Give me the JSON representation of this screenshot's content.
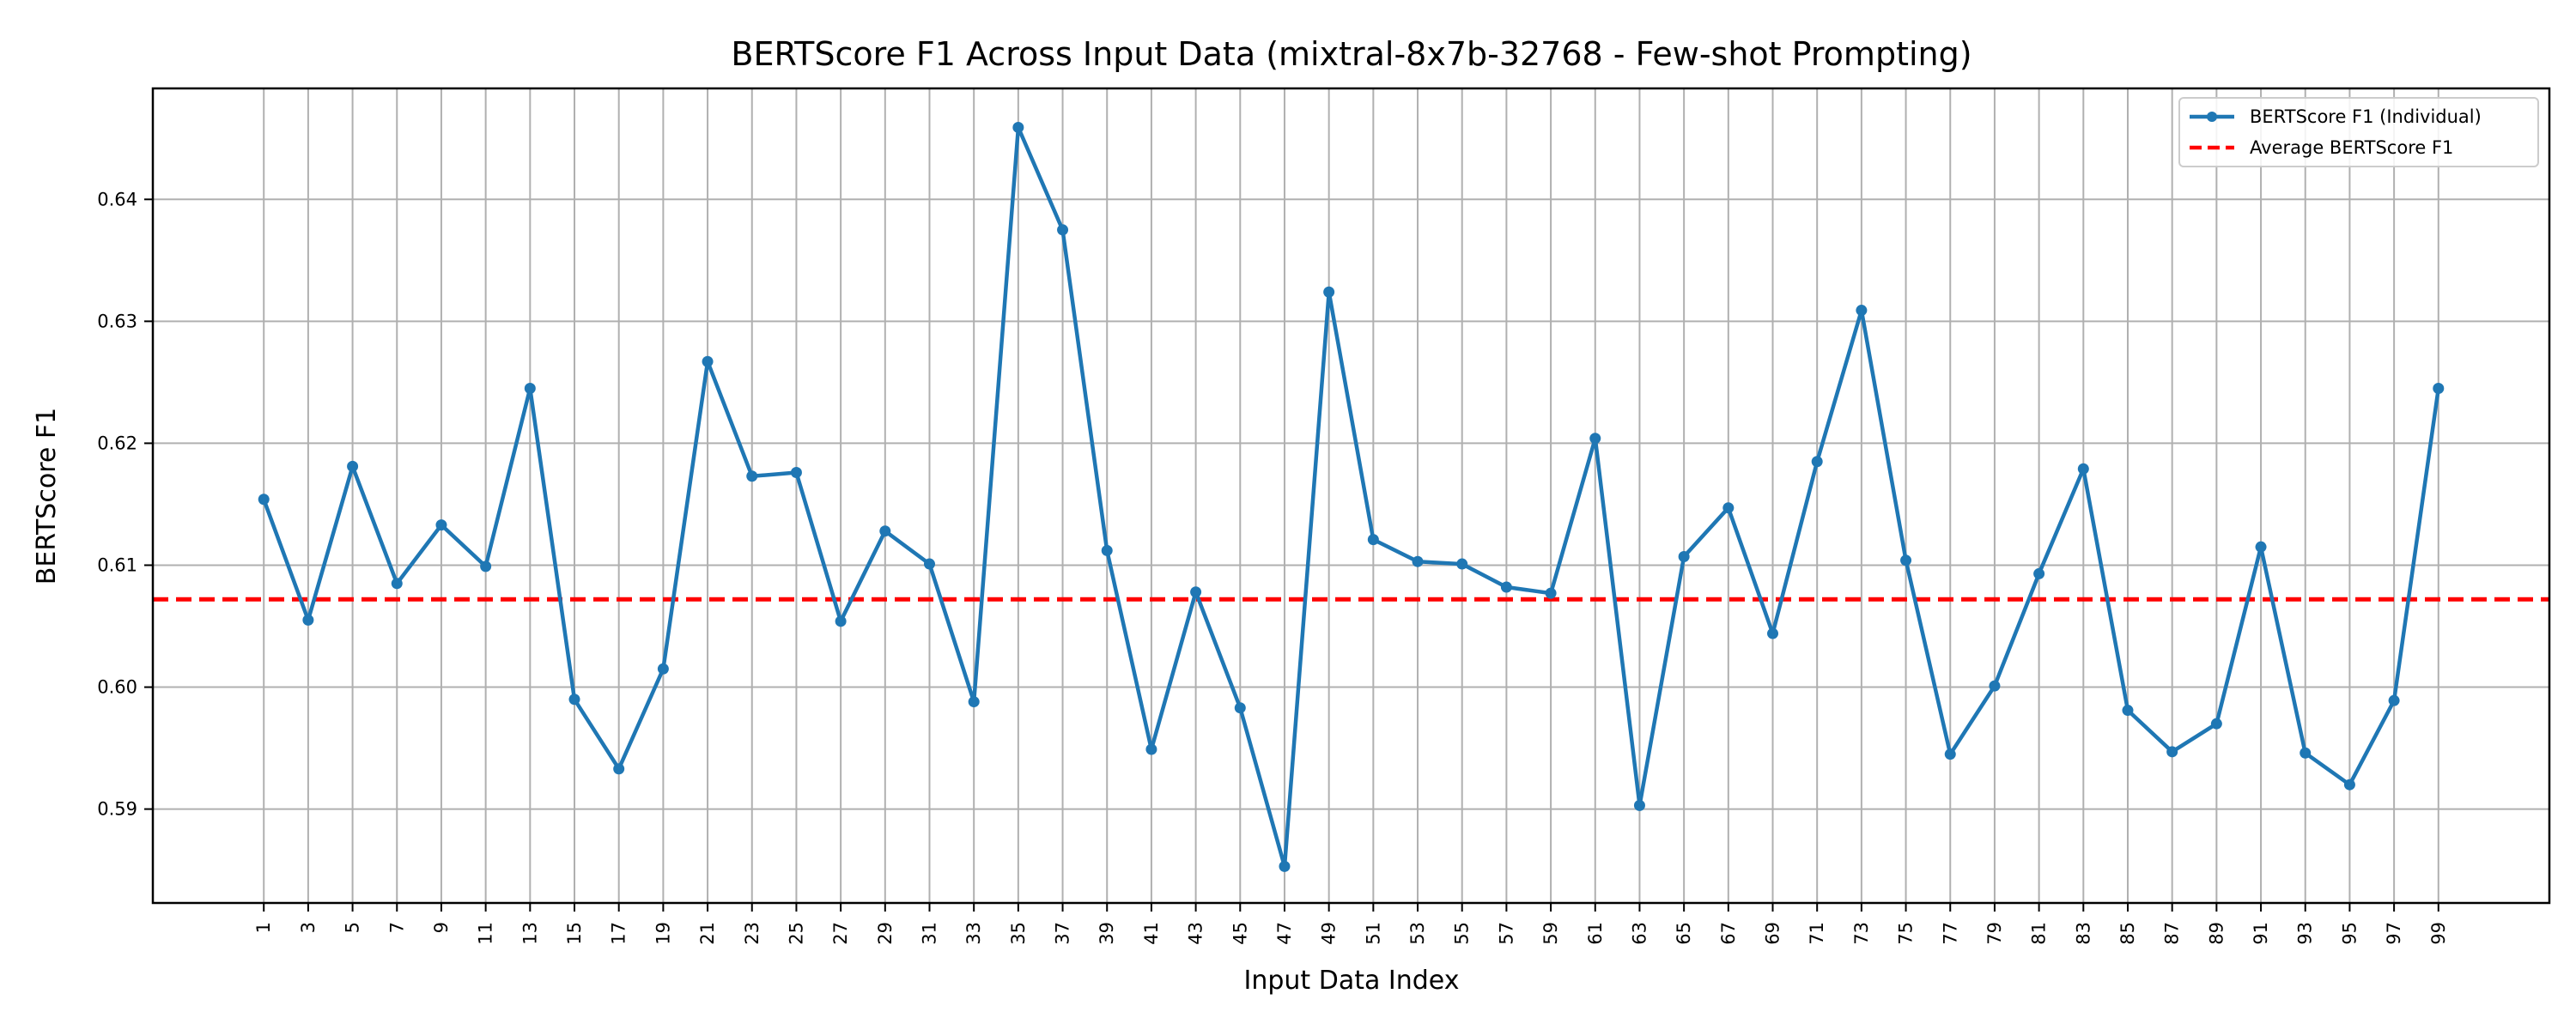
{
  "chart_data": {
    "type": "line",
    "title": "BERTScore F1 Across Input Data (mixtral-8x7b-32768 - Few-shot Prompting)",
    "xlabel": "Input Data Index",
    "ylabel": "BERTScore F1",
    "x": [
      1,
      3,
      5,
      7,
      9,
      11,
      13,
      15,
      17,
      19,
      21,
      23,
      25,
      27,
      29,
      31,
      33,
      35,
      37,
      39,
      41,
      43,
      45,
      47,
      49,
      51,
      53,
      55,
      57,
      59,
      61,
      63,
      65,
      67,
      69,
      71,
      73,
      75,
      77,
      79,
      81,
      83,
      85,
      87,
      89,
      91,
      93,
      95,
      97,
      99
    ],
    "xlim": [
      -4,
      104
    ],
    "ylim": [
      0.5823,
      0.6491
    ],
    "yticks": [
      0.59,
      0.6,
      0.61,
      0.62,
      0.63,
      0.64
    ],
    "ytick_labels": [
      "0.59",
      "0.60",
      "0.61",
      "0.62",
      "0.63",
      "0.64"
    ],
    "grid": true,
    "legend_position": "top-right",
    "series": [
      {
        "name": "BERTScore F1 (Individual)",
        "style": "line-marker",
        "color": "#1f77b4",
        "values": [
          0.6154,
          0.6055,
          0.6181,
          0.6085,
          0.6133,
          0.6099,
          0.6245,
          0.599,
          0.5933,
          0.6015,
          0.6267,
          0.6173,
          0.6176,
          0.6054,
          0.6128,
          0.6101,
          0.5988,
          0.6459,
          0.6375,
          0.6112,
          0.5949,
          0.6078,
          0.5983,
          0.5853,
          0.6324,
          0.6121,
          0.6103,
          0.6101,
          0.6082,
          0.6077,
          0.6204,
          0.5903,
          0.6107,
          0.6147,
          0.6044,
          0.6185,
          0.6309,
          0.6104,
          0.5945,
          0.6001,
          0.6093,
          0.6179,
          0.5981,
          0.5947,
          0.597,
          0.6115,
          0.5946,
          0.592,
          0.5989,
          0.6245
        ]
      },
      {
        "name": "Average BERTScore F1",
        "style": "dashed",
        "color": "#ff0000",
        "value": 0.6072
      }
    ]
  }
}
